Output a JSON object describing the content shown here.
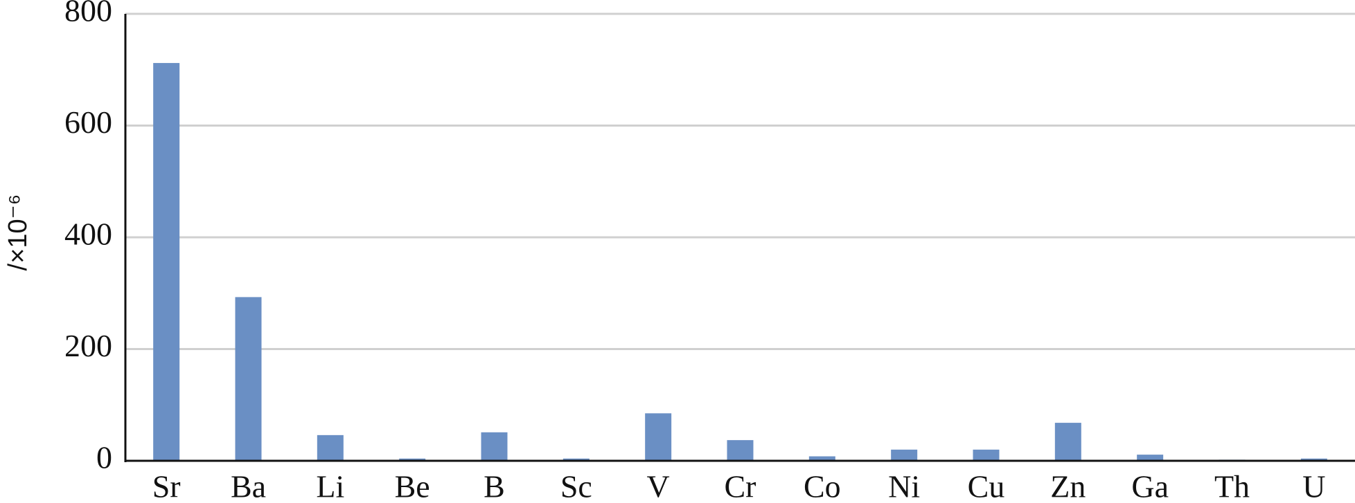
{
  "chart_data": {
    "type": "bar",
    "y_label": "/×10⁻⁶",
    "categories": [
      "Sr",
      "Ba",
      "Li",
      "Be",
      "B",
      "Sc",
      "V",
      "Cr",
      "Co",
      "Ni",
      "Cu",
      "Zn",
      "Ga",
      "Th",
      "U"
    ],
    "values": [
      712,
      293,
      46,
      4,
      51,
      4,
      85,
      37,
      8,
      20,
      20,
      68,
      11,
      2,
      4
    ],
    "color": "#6a8fc4",
    "ylim": [
      0,
      800
    ],
    "yticks": [
      0,
      200,
      400,
      600,
      800
    ],
    "grid": true
  }
}
